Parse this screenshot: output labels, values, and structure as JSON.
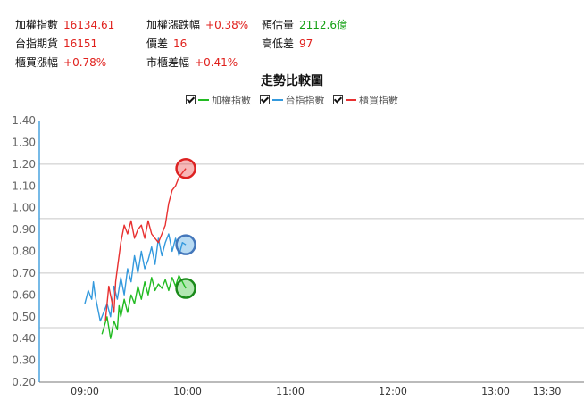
{
  "stats": {
    "row1": [
      {
        "label": "加權指數",
        "value": "16134.61",
        "color": "#e0201c"
      },
      {
        "label": "加權漲跌幅",
        "value": "+0.38%",
        "color": "#e0201c"
      },
      {
        "label": "預估量",
        "value": "2112.6億",
        "color": "#12a012"
      }
    ],
    "row2": [
      {
        "label": "台指期貨",
        "value": "16151",
        "color": "#e0201c"
      },
      {
        "label": "價差",
        "value": "16",
        "color": "#e0201c"
      },
      {
        "label": "高低差",
        "value": "97",
        "color": "#e0201c"
      }
    ],
    "row3": [
      {
        "label": "櫃買漲幅",
        "value": "+0.78%",
        "color": "#e0201c"
      },
      {
        "label": "市櫃差幅",
        "value": "+0.41%",
        "color": "#e0201c"
      }
    ]
  },
  "legend_items": [
    {
      "name": "加權指數",
      "color": "#22bb22",
      "checked": true
    },
    {
      "name": "台指指數",
      "color": "#3399dd",
      "checked": true
    },
    {
      "name": "櫃買指數",
      "color": "#e83030",
      "checked": true
    }
  ],
  "chart_data": {
    "type": "line",
    "title": "走勢比較圖",
    "xlabel": "",
    "ylabel": "",
    "ylim": [
      0.2,
      1.4
    ],
    "y_ticks": [
      "0.20",
      "0.30",
      "0.40",
      "0.50",
      "0.60",
      "0.70",
      "0.80",
      "0.90",
      "1.00",
      "1.10",
      "1.20",
      "1.30",
      "1.40"
    ],
    "x_ticks": [
      "09:00",
      "10:00",
      "11:00",
      "12:00",
      "13:00",
      "13:30"
    ],
    "grid": "horizontal every 0.25 starting at 0.20",
    "series": [
      {
        "name": "加權指數",
        "color": "#22bb22",
        "end_marker_color": "#1a8a1a",
        "x": [
          "09:10",
          "09:13",
          "09:15",
          "09:17",
          "09:19",
          "09:20",
          "09:21",
          "09:23",
          "09:25",
          "09:27",
          "09:29",
          "09:31",
          "09:33",
          "09:35",
          "09:37",
          "09:39",
          "09:41",
          "09:43",
          "09:45",
          "09:47",
          "09:49",
          "09:51",
          "09:53",
          "09:55",
          "09:57",
          "09:59"
        ],
        "values": [
          0.42,
          0.5,
          0.4,
          0.48,
          0.44,
          0.55,
          0.5,
          0.58,
          0.52,
          0.6,
          0.56,
          0.64,
          0.58,
          0.66,
          0.6,
          0.68,
          0.62,
          0.65,
          0.63,
          0.67,
          0.62,
          0.68,
          0.64,
          0.69,
          0.66,
          0.63
        ]
      },
      {
        "name": "台指指數",
        "color": "#3399dd",
        "end_marker_color": "#4477bb",
        "x": [
          "09:00",
          "09:02",
          "09:04",
          "09:05",
          "09:06",
          "09:07",
          "09:09",
          "09:11",
          "09:13",
          "09:15",
          "09:17",
          "09:19",
          "09:21",
          "09:23",
          "09:25",
          "09:27",
          "09:29",
          "09:31",
          "09:33",
          "09:35",
          "09:37",
          "09:39",
          "09:41",
          "09:43",
          "09:45",
          "09:47",
          "09:49",
          "09:51",
          "09:53",
          "09:55",
          "09:57",
          "09:59"
        ],
        "values": [
          0.56,
          0.62,
          0.58,
          0.66,
          0.6,
          0.56,
          0.48,
          0.52,
          0.56,
          0.5,
          0.64,
          0.58,
          0.68,
          0.6,
          0.72,
          0.66,
          0.78,
          0.7,
          0.8,
          0.72,
          0.76,
          0.82,
          0.74,
          0.86,
          0.78,
          0.84,
          0.88,
          0.8,
          0.86,
          0.78,
          0.84,
          0.83
        ]
      },
      {
        "name": "櫃買指數",
        "color": "#e83030",
        "end_marker_color": "#dd2222",
        "x": [
          "09:12",
          "09:14",
          "09:16",
          "09:17",
          "09:18",
          "09:19",
          "09:21",
          "09:23",
          "09:25",
          "09:27",
          "09:29",
          "09:31",
          "09:33",
          "09:35",
          "09:37",
          "09:39",
          "09:41",
          "09:43",
          "09:45",
          "09:47",
          "09:49",
          "09:51",
          "09:53",
          "09:55",
          "09:57",
          "09:59"
        ],
        "values": [
          0.48,
          0.64,
          0.56,
          0.52,
          0.66,
          0.72,
          0.84,
          0.92,
          0.88,
          0.94,
          0.86,
          0.9,
          0.92,
          0.86,
          0.94,
          0.88,
          0.86,
          0.84,
          0.88,
          0.92,
          1.02,
          1.08,
          1.1,
          1.14,
          1.16,
          1.18
        ]
      }
    ]
  }
}
